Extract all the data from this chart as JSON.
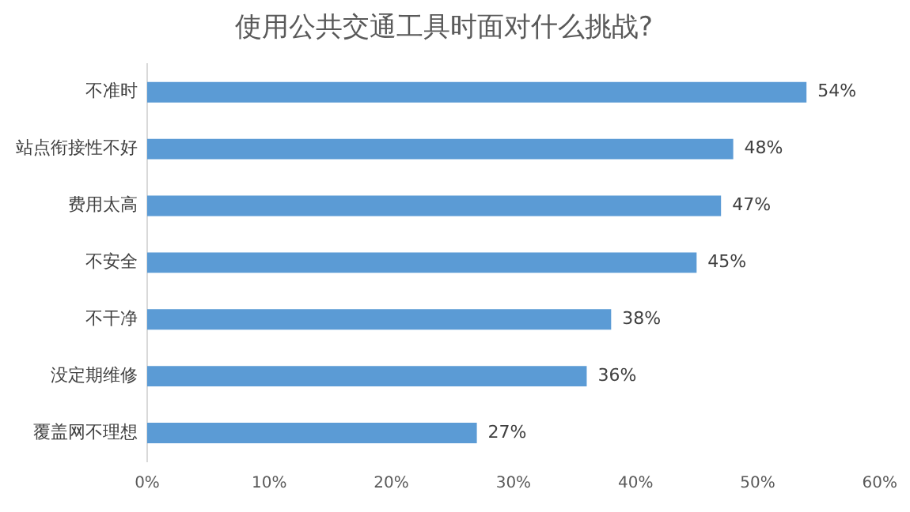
{
  "chart_data": {
    "type": "bar",
    "orientation": "horizontal",
    "title": "使用公共交通工具时面对什么挑战?",
    "categories": [
      "不准时",
      "站点衔接性不好",
      "费用太高",
      "不安全",
      "不干净",
      "没定期维修",
      "覆盖网不理想"
    ],
    "values": [
      54,
      48,
      47,
      45,
      38,
      36,
      27
    ],
    "value_labels": [
      "54%",
      "48%",
      "47%",
      "45%",
      "38%",
      "36%",
      "27%"
    ],
    "color": "#5b9bd5",
    "xlim": [
      0,
      60
    ],
    "xticks": [
      {
        "value": 0,
        "label": "0%"
      },
      {
        "value": 10,
        "label": "10%"
      },
      {
        "value": 20,
        "label": "20%"
      },
      {
        "value": 30,
        "label": "30%"
      },
      {
        "value": 40,
        "label": "40%"
      },
      {
        "value": 50,
        "label": "50%"
      },
      {
        "value": 60,
        "label": "60%"
      }
    ],
    "grid": false,
    "legend": false
  }
}
